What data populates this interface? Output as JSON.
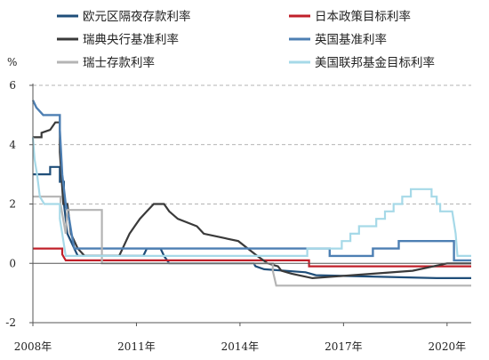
{
  "chart_data": {
    "type": "line",
    "unit_label": "%",
    "ylim": [
      -2,
      6
    ],
    "yticks": [
      -2,
      0,
      2,
      4,
      6
    ],
    "xlim": [
      2008.0,
      2020.7
    ],
    "xticks": [
      {
        "value": 2008,
        "label": "2008年"
      },
      {
        "value": 2011,
        "label": "2011年"
      },
      {
        "value": 2014,
        "label": "2014年"
      },
      {
        "value": 2017,
        "label": "2017年"
      },
      {
        "value": 2020,
        "label": "2020年"
      }
    ],
    "grid": "dashed-horizontal",
    "legend": "top, two columns",
    "series": [
      {
        "name": "欧元区隔夜存款利率",
        "color": "#1f4e79",
        "width": 2.2,
        "points": [
          [
            2008.0,
            3.0
          ],
          [
            2008.5,
            3.0
          ],
          [
            2008.5,
            3.25
          ],
          [
            2008.78,
            3.25
          ],
          [
            2008.78,
            2.75
          ],
          [
            2008.9,
            2.75
          ],
          [
            2008.9,
            2.0
          ],
          [
            2009.0,
            1.0
          ],
          [
            2009.2,
            0.5
          ],
          [
            2009.3,
            0.25
          ],
          [
            2011.2,
            0.25
          ],
          [
            2011.3,
            0.5
          ],
          [
            2011.7,
            0.5
          ],
          [
            2011.8,
            0.25
          ],
          [
            2011.95,
            0.0
          ],
          [
            2014.4,
            0.0
          ],
          [
            2014.45,
            -0.1
          ],
          [
            2014.7,
            -0.2
          ],
          [
            2015.9,
            -0.3
          ],
          [
            2016.2,
            -0.4
          ],
          [
            2019.7,
            -0.5
          ],
          [
            2020.7,
            -0.5
          ]
        ]
      },
      {
        "name": "日本政策目标利率",
        "color": "#c0202a",
        "width": 2.2,
        "points": [
          [
            2008.0,
            0.5
          ],
          [
            2008.85,
            0.5
          ],
          [
            2008.85,
            0.3
          ],
          [
            2008.95,
            0.1
          ],
          [
            2016.0,
            0.1
          ],
          [
            2016.0,
            -0.1
          ],
          [
            2020.7,
            -0.1
          ]
        ]
      },
      {
        "name": "瑞典央行基准利率",
        "color": "#3a3a3a",
        "width": 2.2,
        "points": [
          [
            2008.0,
            4.25
          ],
          [
            2008.25,
            4.25
          ],
          [
            2008.25,
            4.4
          ],
          [
            2008.5,
            4.5
          ],
          [
            2008.65,
            4.75
          ],
          [
            2008.78,
            4.75
          ],
          [
            2008.78,
            3.75
          ],
          [
            2008.88,
            2.0
          ],
          [
            2009.0,
            2.0
          ],
          [
            2009.1,
            1.0
          ],
          [
            2009.3,
            0.5
          ],
          [
            2009.5,
            0.25
          ],
          [
            2010.5,
            0.25
          ],
          [
            2010.6,
            0.5
          ],
          [
            2010.7,
            0.75
          ],
          [
            2010.8,
            1.0
          ],
          [
            2010.95,
            1.25
          ],
          [
            2011.1,
            1.5
          ],
          [
            2011.3,
            1.75
          ],
          [
            2011.5,
            2.0
          ],
          [
            2011.8,
            2.0
          ],
          [
            2011.95,
            1.75
          ],
          [
            2012.2,
            1.5
          ],
          [
            2012.75,
            1.25
          ],
          [
            2012.95,
            1.0
          ],
          [
            2013.95,
            0.75
          ],
          [
            2014.5,
            0.25
          ],
          [
            2014.8,
            0.0
          ],
          [
            2015.1,
            -0.1
          ],
          [
            2015.2,
            -0.25
          ],
          [
            2015.5,
            -0.35
          ],
          [
            2016.1,
            -0.5
          ],
          [
            2019.0,
            -0.25
          ],
          [
            2020.0,
            0.0
          ],
          [
            2020.7,
            0.0
          ]
        ]
      },
      {
        "name": "英国基准利率",
        "color": "#4d7fb3",
        "width": 2.4,
        "points": [
          [
            2008.0,
            5.5
          ],
          [
            2008.1,
            5.25
          ],
          [
            2008.3,
            5.0
          ],
          [
            2008.78,
            5.0
          ],
          [
            2008.78,
            4.5
          ],
          [
            2008.85,
            3.0
          ],
          [
            2008.95,
            2.0
          ],
          [
            2009.05,
            1.5
          ],
          [
            2009.12,
            1.0
          ],
          [
            2009.2,
            0.5
          ],
          [
            2016.6,
            0.5
          ],
          [
            2016.6,
            0.25
          ],
          [
            2017.85,
            0.25
          ],
          [
            2017.85,
            0.5
          ],
          [
            2018.6,
            0.5
          ],
          [
            2018.6,
            0.75
          ],
          [
            2020.2,
            0.75
          ],
          [
            2020.2,
            0.1
          ],
          [
            2020.7,
            0.1
          ]
        ]
      },
      {
        "name": "瑞士存款利率",
        "color": "#b4b4b4",
        "width": 2.2,
        "points": [
          [
            2008.0,
            2.25
          ],
          [
            2008.8,
            2.25
          ],
          [
            2008.8,
            2.0
          ],
          [
            2008.95,
            1.0
          ],
          [
            2009.0,
            1.8
          ],
          [
            2010.0,
            1.8
          ],
          [
            2010.0,
            0.0
          ],
          [
            2014.95,
            0.0
          ],
          [
            2014.95,
            -0.25
          ],
          [
            2015.05,
            -0.75
          ],
          [
            2020.7,
            -0.75
          ]
        ]
      },
      {
        "name": "美国联邦基金目标利率",
        "color": "#a6d9e8",
        "width": 2.2,
        "points": [
          [
            2008.0,
            4.25
          ],
          [
            2008.05,
            3.5
          ],
          [
            2008.12,
            3.0
          ],
          [
            2008.2,
            2.25
          ],
          [
            2008.33,
            2.0
          ],
          [
            2008.78,
            2.0
          ],
          [
            2008.78,
            1.5
          ],
          [
            2008.85,
            1.0
          ],
          [
            2008.95,
            0.25
          ],
          [
            2015.95,
            0.25
          ],
          [
            2015.95,
            0.5
          ],
          [
            2016.95,
            0.5
          ],
          [
            2016.95,
            0.75
          ],
          [
            2017.2,
            0.75
          ],
          [
            2017.2,
            1.0
          ],
          [
            2017.45,
            1.0
          ],
          [
            2017.45,
            1.25
          ],
          [
            2017.95,
            1.25
          ],
          [
            2017.95,
            1.5
          ],
          [
            2018.2,
            1.5
          ],
          [
            2018.2,
            1.75
          ],
          [
            2018.45,
            1.75
          ],
          [
            2018.45,
            2.0
          ],
          [
            2018.7,
            2.0
          ],
          [
            2018.7,
            2.25
          ],
          [
            2018.95,
            2.25
          ],
          [
            2018.95,
            2.5
          ],
          [
            2019.55,
            2.5
          ],
          [
            2019.55,
            2.25
          ],
          [
            2019.7,
            2.25
          ],
          [
            2019.7,
            2.0
          ],
          [
            2019.8,
            2.0
          ],
          [
            2019.8,
            1.75
          ],
          [
            2020.15,
            1.75
          ],
          [
            2020.25,
            1.0
          ],
          [
            2020.3,
            0.25
          ],
          [
            2020.7,
            0.25
          ]
        ]
      }
    ]
  }
}
